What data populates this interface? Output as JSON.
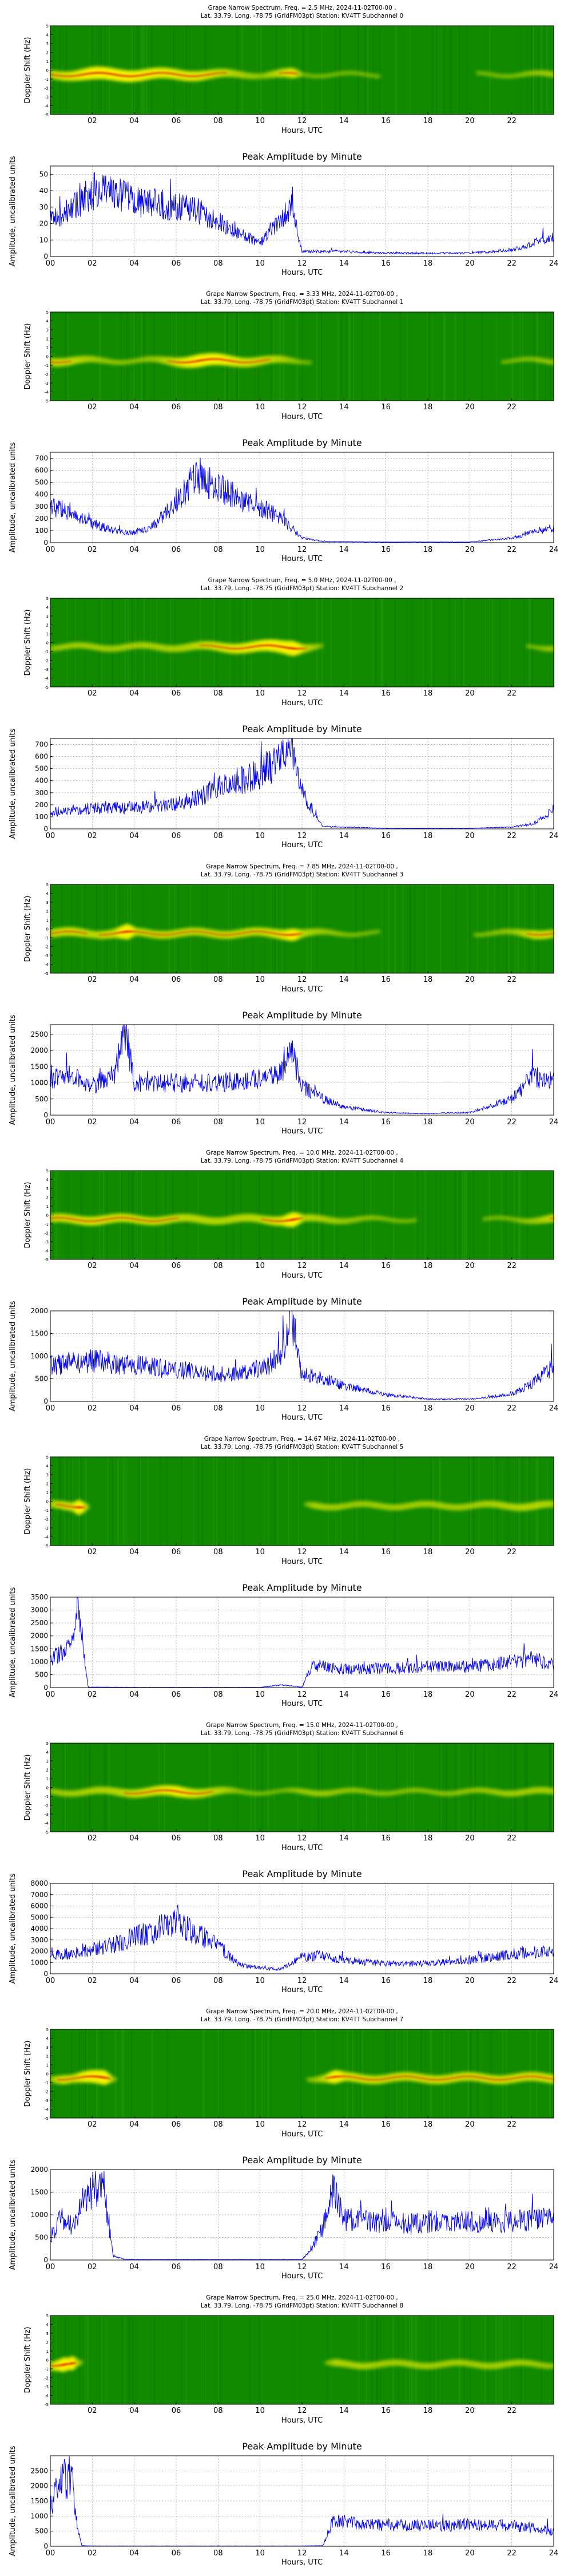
{
  "common": {
    "x_label": "Hours, UTC",
    "spec_ylabel": "Doppler Shift (Hz)",
    "amp_title": "Peak Amplitude by Minute",
    "amp_ylabel": "Amplitude, uncalibrated units",
    "title_line2_prefix": "Lat.  33.79, Long. -78.75 (GridFM03pt) Station: KV4TT Subchannel ",
    "spec_xticks": [
      "02",
      "04",
      "06",
      "08",
      "10",
      "12",
      "14",
      "16",
      "18",
      "20",
      "22"
    ],
    "amp_xticks": [
      "00",
      "02",
      "04",
      "06",
      "08",
      "10",
      "12",
      "14",
      "16",
      "18",
      "20",
      "22",
      "24"
    ],
    "spec_yticks": [
      "-5",
      "-4",
      "-3",
      "-2",
      "-1",
      "0",
      "1",
      "2",
      "3",
      "4",
      "5"
    ],
    "colors": {
      "line": "#0000ff",
      "spec_bg": "#118a00",
      "spec_trace": "#f2f200",
      "spec_core": "#e83a00",
      "grid": "#999999"
    }
  },
  "panels": [
    {
      "freq": "2.5",
      "title": "Grape Narrow Spectrum, Freq. = 2.5 MHz, 2024-11-02T00-00 ,",
      "sub": "0",
      "ymax": 50,
      "yticks": [
        0,
        10,
        20,
        30,
        40,
        50
      ]
    },
    {
      "freq": "3.33",
      "title": "Grape Narrow Spectrum, Freq. = 3.33 MHz, 2024-11-02T00-00 ,",
      "sub": "1",
      "ymax": 700,
      "yticks": [
        0,
        100,
        200,
        300,
        400,
        500,
        600,
        700
      ]
    },
    {
      "freq": "5.0",
      "title": "Grape Narrow Spectrum, Freq. = 5.0 MHz, 2024-11-02T00-00 ,",
      "sub": "2",
      "ymax": 750,
      "yticks": [
        0,
        100,
        200,
        300,
        400,
        500,
        600,
        700
      ]
    },
    {
      "freq": "7.85",
      "title": "Grape Narrow Spectrum, Freq. = 7.85 MHz, 2024-11-02T00-00 ,",
      "sub": "3",
      "ymax": 2800,
      "yticks": [
        0,
        500,
        1000,
        1500,
        2000,
        2500
      ]
    },
    {
      "freq": "10.0",
      "title": "Grape Narrow Spectrum, Freq. = 10.0 MHz, 2024-11-02T00-00 ,",
      "sub": "4",
      "ymax": 2000,
      "yticks": [
        0,
        500,
        1000,
        1500,
        2000
      ]
    },
    {
      "freq": "14.67",
      "title": "Grape Narrow Spectrum, Freq. = 14.67 MHz, 2024-11-02T00-00 ,",
      "sub": "5",
      "ymax": 3500,
      "yticks": [
        0,
        500,
        1000,
        1500,
        2000,
        2500,
        3000,
        3500
      ]
    },
    {
      "freq": "15.0",
      "title": "Grape Narrow Spectrum, Freq. = 15.0 MHz, 2024-11-02T00-00 ,",
      "sub": "6",
      "ymax": 8000,
      "yticks": [
        0,
        1000,
        2000,
        3000,
        4000,
        5000,
        6000,
        7000,
        8000
      ]
    },
    {
      "freq": "20.0",
      "title": "Grape Narrow Spectrum, Freq. = 20.0 MHz, 2024-11-02T00-00 ,",
      "sub": "7",
      "ymax": 2000,
      "yticks": [
        0,
        500,
        1000,
        1500,
        2000
      ]
    },
    {
      "freq": "25.0",
      "title": "Grape Narrow Spectrum, Freq. = 25.0 MHz, 2024-11-02T00-00 ,",
      "sub": "8",
      "ymax": 3000,
      "yticks": [
        0,
        500,
        1000,
        1500,
        2000,
        2500
      ]
    }
  ],
  "chart_data": [
    {
      "type": "line",
      "title": "Peak Amplitude by Minute",
      "subchannel": 0,
      "freq_mhz": 2.5,
      "xlabel": "Hours, UTC",
      "ylabel": "Amplitude, uncalibrated units",
      "xlim": [
        0,
        24
      ],
      "ylim": [
        0,
        55
      ],
      "x": [
        0,
        1,
        2,
        3,
        4,
        5,
        6,
        7,
        8,
        9,
        10,
        11,
        11.5,
        12,
        14,
        16,
        18,
        20,
        22,
        24
      ],
      "y": [
        22,
        28,
        40,
        38,
        34,
        32,
        30,
        28,
        22,
        14,
        8,
        22,
        30,
        3,
        3,
        2,
        2,
        2,
        4,
        12
      ]
    },
    {
      "type": "line",
      "title": "Peak Amplitude by Minute",
      "subchannel": 1,
      "freq_mhz": 3.33,
      "xlabel": "Hours, UTC",
      "ylabel": "Amplitude, uncalibrated units",
      "xlim": [
        0,
        24
      ],
      "ylim": [
        0,
        750
      ],
      "x": [
        0,
        1,
        2,
        3,
        4,
        5,
        6,
        7,
        8,
        9,
        10,
        11,
        12,
        13,
        16,
        20,
        22,
        24
      ],
      "y": [
        300,
        260,
        160,
        100,
        80,
        150,
        350,
        560,
        480,
        360,
        300,
        200,
        40,
        10,
        5,
        5,
        40,
        130
      ]
    },
    {
      "type": "line",
      "title": "Peak Amplitude by Minute",
      "subchannel": 2,
      "freq_mhz": 5.0,
      "xlabel": "Hours, UTC",
      "ylabel": "Amplitude, uncalibrated units",
      "xlim": [
        0,
        24
      ],
      "ylim": [
        0,
        750
      ],
      "x": [
        0,
        2,
        4,
        6,
        7,
        8,
        9,
        10,
        11,
        11.5,
        12,
        13,
        16,
        20,
        22,
        23,
        24
      ],
      "y": [
        140,
        170,
        180,
        200,
        260,
        340,
        400,
        450,
        560,
        700,
        300,
        20,
        5,
        5,
        15,
        40,
        160
      ]
    },
    {
      "type": "line",
      "title": "Peak Amplitude by Minute",
      "subchannel": 3,
      "freq_mhz": 7.85,
      "xlabel": "Hours, UTC",
      "ylabel": "Amplitude, uncalibrated units",
      "xlim": [
        0,
        24
      ],
      "ylim": [
        0,
        2800
      ],
      "x": [
        0,
        1,
        2,
        3,
        3.6,
        4,
        6,
        8,
        10,
        11,
        11.5,
        12,
        13,
        14,
        16,
        18,
        20,
        22,
        23,
        24
      ],
      "y": [
        1100,
        1200,
        900,
        1200,
        2700,
        1000,
        1000,
        1000,
        1100,
        1400,
        2000,
        900,
        500,
        250,
        80,
        50,
        80,
        500,
        1200,
        1100
      ]
    },
    {
      "type": "line",
      "title": "Peak Amplitude by Minute",
      "subchannel": 4,
      "freq_mhz": 10.0,
      "xlabel": "Hours, UTC",
      "ylabel": "Amplitude, uncalibrated units",
      "xlim": [
        0,
        24
      ],
      "ylim": [
        0,
        2000
      ],
      "x": [
        0,
        1,
        2,
        4,
        6,
        8,
        10,
        11,
        11.5,
        12,
        13,
        14,
        16,
        18,
        20,
        22,
        23,
        24
      ],
      "y": [
        800,
        850,
        900,
        800,
        700,
        600,
        700,
        1000,
        1900,
        600,
        500,
        350,
        150,
        50,
        50,
        150,
        400,
        800
      ]
    },
    {
      "type": "line",
      "title": "Peak Amplitude by Minute",
      "subchannel": 5,
      "freq_mhz": 14.67,
      "xlabel": "Hours, UTC",
      "ylabel": "Amplitude, uncalibrated units",
      "xlim": [
        0,
        24
      ],
      "ylim": [
        0,
        3500
      ],
      "x": [
        0,
        0.5,
        1,
        1.3,
        1.8,
        4,
        8,
        10,
        11,
        12,
        12.5,
        14,
        16,
        18,
        20,
        22,
        23,
        24
      ],
      "y": [
        1100,
        1400,
        1500,
        3300,
        20,
        10,
        10,
        10,
        100,
        20,
        900,
        700,
        750,
        800,
        800,
        1000,
        1100,
        900
      ]
    },
    {
      "type": "line",
      "title": "Peak Amplitude by Minute",
      "subchannel": 6,
      "freq_mhz": 15.0,
      "xlabel": "Hours, UTC",
      "ylabel": "Amplitude, uncalibrated units",
      "xlim": [
        0,
        24
      ],
      "ylim": [
        0,
        8000
      ],
      "x": [
        0,
        1,
        2,
        3,
        4,
        5,
        6,
        7,
        8,
        9,
        10,
        11,
        12,
        13,
        14,
        16,
        18,
        20,
        22,
        24
      ],
      "y": [
        1600,
        1800,
        2200,
        2500,
        3200,
        3800,
        4800,
        3500,
        2500,
        800,
        500,
        400,
        1500,
        1600,
        1200,
        900,
        900,
        1200,
        1800,
        2000
      ]
    },
    {
      "type": "line",
      "title": "Peak Amplitude by Minute",
      "subchannel": 7,
      "freq_mhz": 20.0,
      "xlabel": "Hours, UTC",
      "ylabel": "Amplitude, uncalibrated units",
      "xlim": [
        0,
        24
      ],
      "ylim": [
        0,
        2000
      ],
      "x": [
        0,
        0.5,
        1,
        1.5,
        2,
        2.5,
        3,
        3.5,
        4,
        8,
        12,
        12.5,
        13,
        13.5,
        14,
        16,
        18,
        20,
        22,
        24
      ],
      "y": [
        500,
        900,
        800,
        1200,
        1500,
        1800,
        100,
        20,
        10,
        10,
        10,
        300,
        700,
        1600,
        900,
        800,
        850,
        850,
        850,
        900
      ]
    },
    {
      "type": "line",
      "title": "Peak Amplitude by Minute",
      "subchannel": 8,
      "freq_mhz": 25.0,
      "xlabel": "Hours, UTC",
      "ylabel": "Amplitude, uncalibrated units",
      "xlim": [
        0,
        24
      ],
      "ylim": [
        0,
        3000
      ],
      "x": [
        0,
        0.3,
        0.6,
        0.8,
        1,
        1.2,
        1.5,
        2,
        4,
        8,
        12,
        13,
        13.5,
        14,
        16,
        18,
        20,
        22,
        24
      ],
      "y": [
        1300,
        1800,
        2700,
        2000,
        2600,
        1000,
        20,
        10,
        10,
        10,
        10,
        20,
        900,
        800,
        700,
        700,
        700,
        700,
        500
      ]
    }
  ]
}
